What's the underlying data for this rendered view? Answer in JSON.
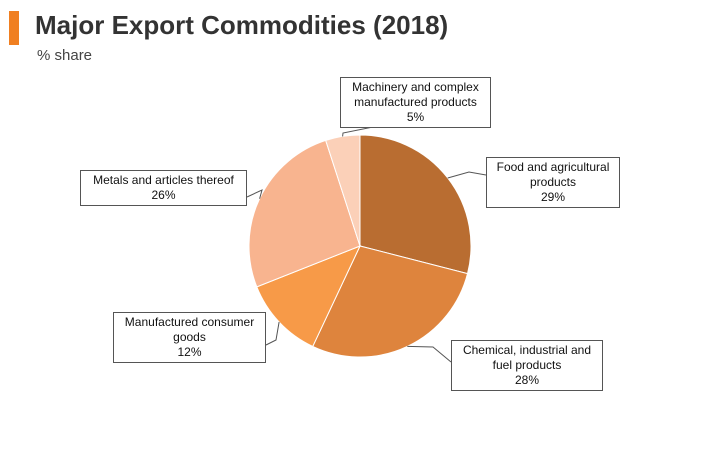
{
  "header": {
    "title": "Major Export Commodities (2018)",
    "subtitle": "% share",
    "accent_color": "#f07f21"
  },
  "chart_data": {
    "type": "pie",
    "title": "Major Export Commodities (2018)",
    "subtitle": "% share",
    "unit": "%",
    "slices": [
      {
        "label": "Food and agricultural products",
        "value": 29,
        "value_label": "29%",
        "color": "#b96d31"
      },
      {
        "label": "Chemical, industrial and fuel products",
        "value": 28,
        "value_label": "28%",
        "color": "#de843d"
      },
      {
        "label": "Manufactured consumer goods",
        "value": 12,
        "value_label": "12%",
        "color": "#f79a48"
      },
      {
        "label": "Metals and articles thereof",
        "value": 26,
        "value_label": "26%",
        "color": "#f8b48f"
      },
      {
        "label": "Machinery and complex manufactured products",
        "value": 5,
        "value_label": "5%",
        "color": "#fbd0b8"
      }
    ],
    "start_angle": "12 o'clock",
    "direction": "clockwise"
  }
}
